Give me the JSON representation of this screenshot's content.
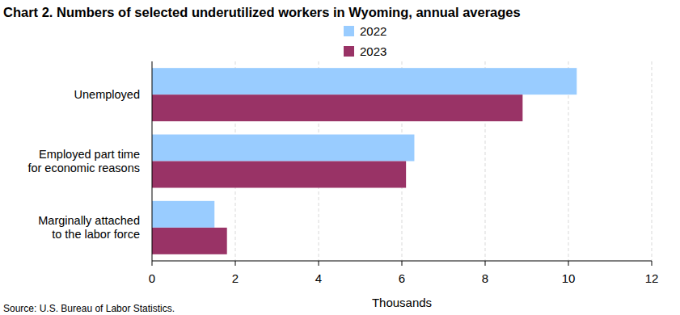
{
  "chart_data": {
    "type": "bar",
    "orientation": "horizontal",
    "title": "Chart 2. Numbers of selected underutilized workers in Wyoming, annual averages",
    "categories": [
      "Unemployed",
      "Employed part time\nfor economic reasons",
      "Marginally attached\nto the labor force"
    ],
    "series": [
      {
        "name": "2022",
        "color": "#99ccff",
        "values": [
          10.2,
          6.3,
          1.5
        ]
      },
      {
        "name": "2023",
        "color": "#993366",
        "values": [
          8.9,
          6.1,
          1.8
        ]
      }
    ],
    "xlim": [
      0,
      12
    ],
    "xticks": [
      0,
      2,
      4,
      6,
      8,
      10,
      12
    ],
    "xlabel": "Thousands",
    "source": "Source: U.S. Bureau of Labor Statistics.",
    "grid": true,
    "legend": "top"
  }
}
